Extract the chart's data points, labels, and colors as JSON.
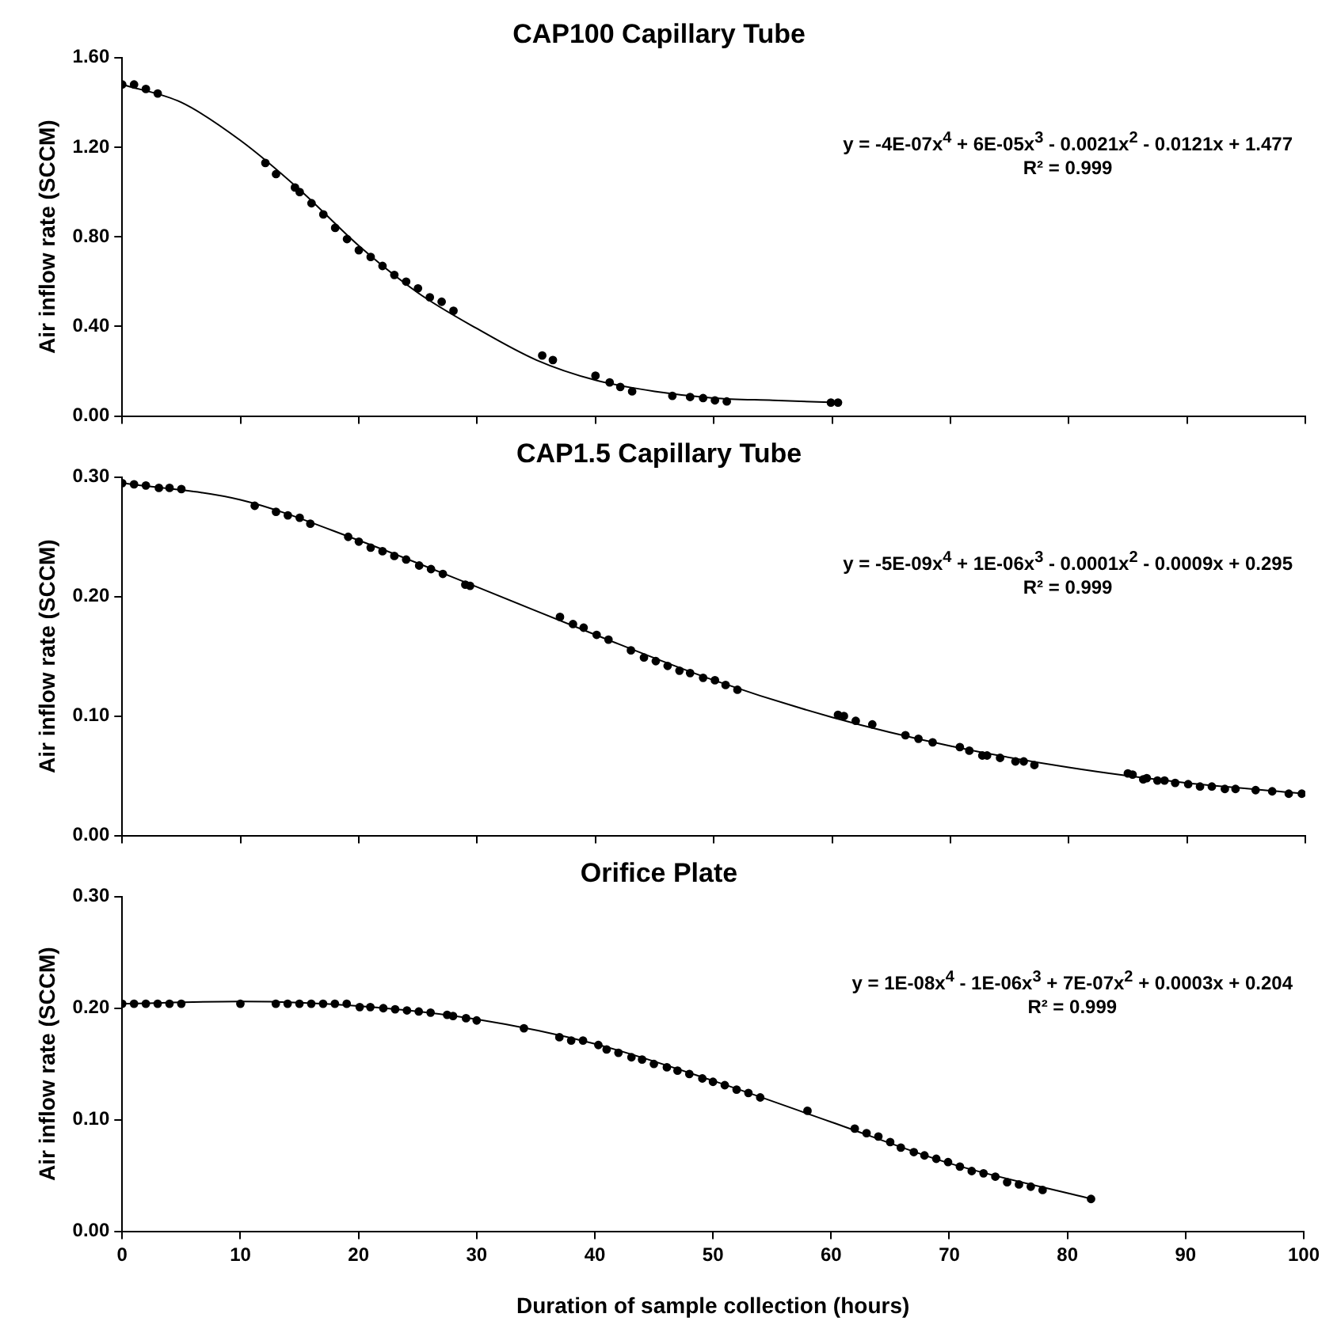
{
  "chart_data": [
    {
      "type": "scatter",
      "title": "CAP100 Capillary Tube",
      "ylabel": "Air inflow rate (SCCM)",
      "xlim": [
        0,
        100
      ],
      "xticks": [
        0,
        10,
        20,
        30,
        40,
        50,
        60,
        70,
        80,
        90,
        100
      ],
      "ylim": [
        0,
        1.6
      ],
      "yticks": [
        {
          "value": 0,
          "label": "0.00"
        },
        {
          "value": 0.4,
          "label": "0.40"
        },
        {
          "value": 0.8,
          "label": "0.80"
        },
        {
          "value": 1.2,
          "label": "1.20"
        },
        {
          "value": 1.6,
          "label": "1.60"
        }
      ],
      "tick_labels": "y",
      "annotations": [
        "y = -4E-07x$^{4}$ + 6E-05x$^{3}$ - 0.0021x$^{2}$ - 0.0121x + 1.477",
        "R² = 0.999"
      ],
      "series": [
        {
          "type": "scatter",
          "marker": "circle",
          "color": "#000000",
          "x": [
            0,
            1,
            2,
            3,
            12.1,
            13,
            14.6,
            15,
            16,
            17,
            18,
            19,
            20,
            21,
            22,
            23,
            24,
            25,
            26,
            27,
            28,
            35.5,
            36.4,
            40,
            41.2,
            42.1,
            43.1,
            46.5,
            48,
            49.1,
            50.1,
            51.1,
            59.9,
            60.5
          ],
          "values": [
            1.48,
            1.48,
            1.46,
            1.44,
            1.13,
            1.08,
            1.02,
            1.0,
            0.95,
            0.9,
            0.84,
            0.79,
            0.74,
            0.71,
            0.67,
            0.63,
            0.6,
            0.57,
            0.53,
            0.51,
            0.47,
            0.27,
            0.25,
            0.18,
            0.15,
            0.13,
            0.11,
            0.09,
            0.085,
            0.08,
            0.07,
            0.065,
            0.06,
            0.06
          ]
        },
        {
          "type": "line",
          "marker": "none",
          "color": "#000000",
          "x": [
            0,
            5,
            10,
            15,
            20,
            25,
            30,
            35,
            40,
            45,
            50,
            55,
            60.5
          ],
          "values": [
            1.48,
            1.4,
            1.23,
            1.01,
            0.76,
            0.55,
            0.39,
            0.25,
            0.16,
            0.11,
            0.08,
            0.07,
            0.06
          ]
        }
      ]
    },
    {
      "type": "scatter",
      "title": "CAP1.5 Capillary Tube",
      "ylabel": "Air inflow rate (SCCM)",
      "xlim": [
        0,
        100
      ],
      "xticks": [
        0,
        10,
        20,
        30,
        40,
        50,
        60,
        70,
        80,
        90,
        100
      ],
      "ylim": [
        0,
        0.3
      ],
      "yticks": [
        {
          "value": 0,
          "label": "0.00"
        },
        {
          "value": 0.1,
          "label": "0.10"
        },
        {
          "value": 0.2,
          "label": "0.20"
        },
        {
          "value": 0.3,
          "label": "0.30"
        }
      ],
      "tick_labels": "y",
      "annotations": [
        "y = -5E-09x$^{4}$ + 1E-06x$^{3}$ - 0.0001x$^{2}$ - 0.0009x + 0.295",
        "R² = 0.999"
      ],
      "series": [
        {
          "type": "scatter",
          "marker": "circle",
          "color": "#000000",
          "x": [
            0,
            1,
            2,
            3.1,
            4,
            5,
            11.2,
            13,
            14,
            15,
            15.9,
            19.1,
            20,
            21,
            22,
            23,
            24,
            25.1,
            26.1,
            27.1,
            29,
            29.4,
            37,
            38.1,
            39,
            40.1,
            41.1,
            43,
            44.1,
            45.1,
            46.1,
            47.1,
            48,
            49.1,
            50.1,
            51,
            52,
            60.5,
            61,
            62,
            63.4,
            66.2,
            67.3,
            68.5,
            70.8,
            71.6,
            72.7,
            73.1,
            74.2,
            75.5,
            76.2,
            77.1,
            85,
            85.4,
            86.3,
            86.6,
            87.5,
            88.1,
            89,
            90.1,
            91.1,
            92.1,
            93.2,
            94.1,
            95.8,
            97.2,
            98.6,
            99.7
          ],
          "values": [
            0.295,
            0.294,
            0.293,
            0.291,
            0.291,
            0.29,
            0.276,
            0.271,
            0.268,
            0.266,
            0.261,
            0.25,
            0.246,
            0.241,
            0.238,
            0.234,
            0.231,
            0.226,
            0.223,
            0.219,
            0.21,
            0.209,
            0.183,
            0.177,
            0.174,
            0.168,
            0.164,
            0.155,
            0.149,
            0.146,
            0.142,
            0.138,
            0.136,
            0.132,
            0.13,
            0.126,
            0.122,
            0.101,
            0.1,
            0.096,
            0.093,
            0.084,
            0.081,
            0.078,
            0.074,
            0.071,
            0.067,
            0.067,
            0.065,
            0.062,
            0.062,
            0.059,
            0.052,
            0.051,
            0.047,
            0.048,
            0.046,
            0.046,
            0.044,
            0.043,
            0.041,
            0.041,
            0.039,
            0.039,
            0.038,
            0.037,
            0.035,
            0.035
          ]
        },
        {
          "type": "line",
          "marker": "none",
          "color": "#000000",
          "x": [
            0,
            10,
            20,
            30,
            40,
            50,
            60,
            70,
            80,
            90,
            100
          ],
          "values": [
            0.295,
            0.281,
            0.247,
            0.208,
            0.168,
            0.13,
            0.099,
            0.075,
            0.057,
            0.044,
            0.035
          ]
        }
      ]
    },
    {
      "type": "scatter",
      "title": "Orifice Plate",
      "xlabel": "Duration of sample collection (hours)",
      "ylabel": "Air inflow rate (SCCM)",
      "xlim": [
        0,
        100
      ],
      "xticks": [
        0,
        10,
        20,
        30,
        40,
        50,
        60,
        70,
        80,
        90,
        100
      ],
      "ylim": [
        0,
        0.3
      ],
      "yticks": [
        {
          "value": 0,
          "label": "0.00"
        },
        {
          "value": 0.1,
          "label": "0.10"
        },
        {
          "value": 0.2,
          "label": "0.20"
        },
        {
          "value": 0.3,
          "label": "0.30"
        }
      ],
      "annotations": [
        "y = 1E-08x$^{4}$ - 1E-06x$^{3}$ + 7E-07x$^{2}$ + 0.0003x + 0.204",
        "R² = 0.999"
      ],
      "series": [
        {
          "type": "scatter",
          "marker": "circle",
          "color": "#000000",
          "x": [
            0,
            1,
            2,
            3,
            4,
            5,
            10,
            13,
            14,
            15,
            16,
            17,
            18,
            19,
            20.1,
            21,
            22.1,
            23.1,
            24.1,
            25.1,
            26.1,
            27.5,
            28,
            29.1,
            30,
            34,
            37,
            38,
            39,
            40.3,
            41,
            42,
            43.1,
            44,
            45,
            46.1,
            47,
            48,
            49.1,
            50,
            51,
            52,
            53,
            54,
            58,
            62,
            63,
            64,
            65,
            65.9,
            67,
            67.9,
            68.9,
            69.9,
            70.9,
            71.9,
            72.9,
            73.9,
            74.9,
            75.9,
            76.9,
            77.9,
            82
          ],
          "values": [
            0.204,
            0.204,
            0.204,
            0.204,
            0.204,
            0.204,
            0.204,
            0.204,
            0.204,
            0.204,
            0.204,
            0.204,
            0.204,
            0.204,
            0.201,
            0.201,
            0.2,
            0.199,
            0.198,
            0.197,
            0.196,
            0.194,
            0.193,
            0.191,
            0.189,
            0.182,
            0.174,
            0.171,
            0.171,
            0.167,
            0.163,
            0.16,
            0.156,
            0.154,
            0.15,
            0.147,
            0.144,
            0.141,
            0.137,
            0.134,
            0.131,
            0.127,
            0.124,
            0.12,
            0.108,
            0.092,
            0.088,
            0.085,
            0.08,
            0.075,
            0.071,
            0.068,
            0.065,
            0.062,
            0.058,
            0.054,
            0.052,
            0.049,
            0.044,
            0.042,
            0.04,
            0.037,
            0.029
          ]
        },
        {
          "type": "line",
          "marker": "none",
          "color": "#000000",
          "x": [
            0,
            10,
            20,
            30,
            40,
            50,
            60,
            70,
            82
          ],
          "values": [
            0.204,
            0.206,
            0.202,
            0.19,
            0.168,
            0.135,
            0.098,
            0.061,
            0.029
          ]
        }
      ]
    }
  ]
}
